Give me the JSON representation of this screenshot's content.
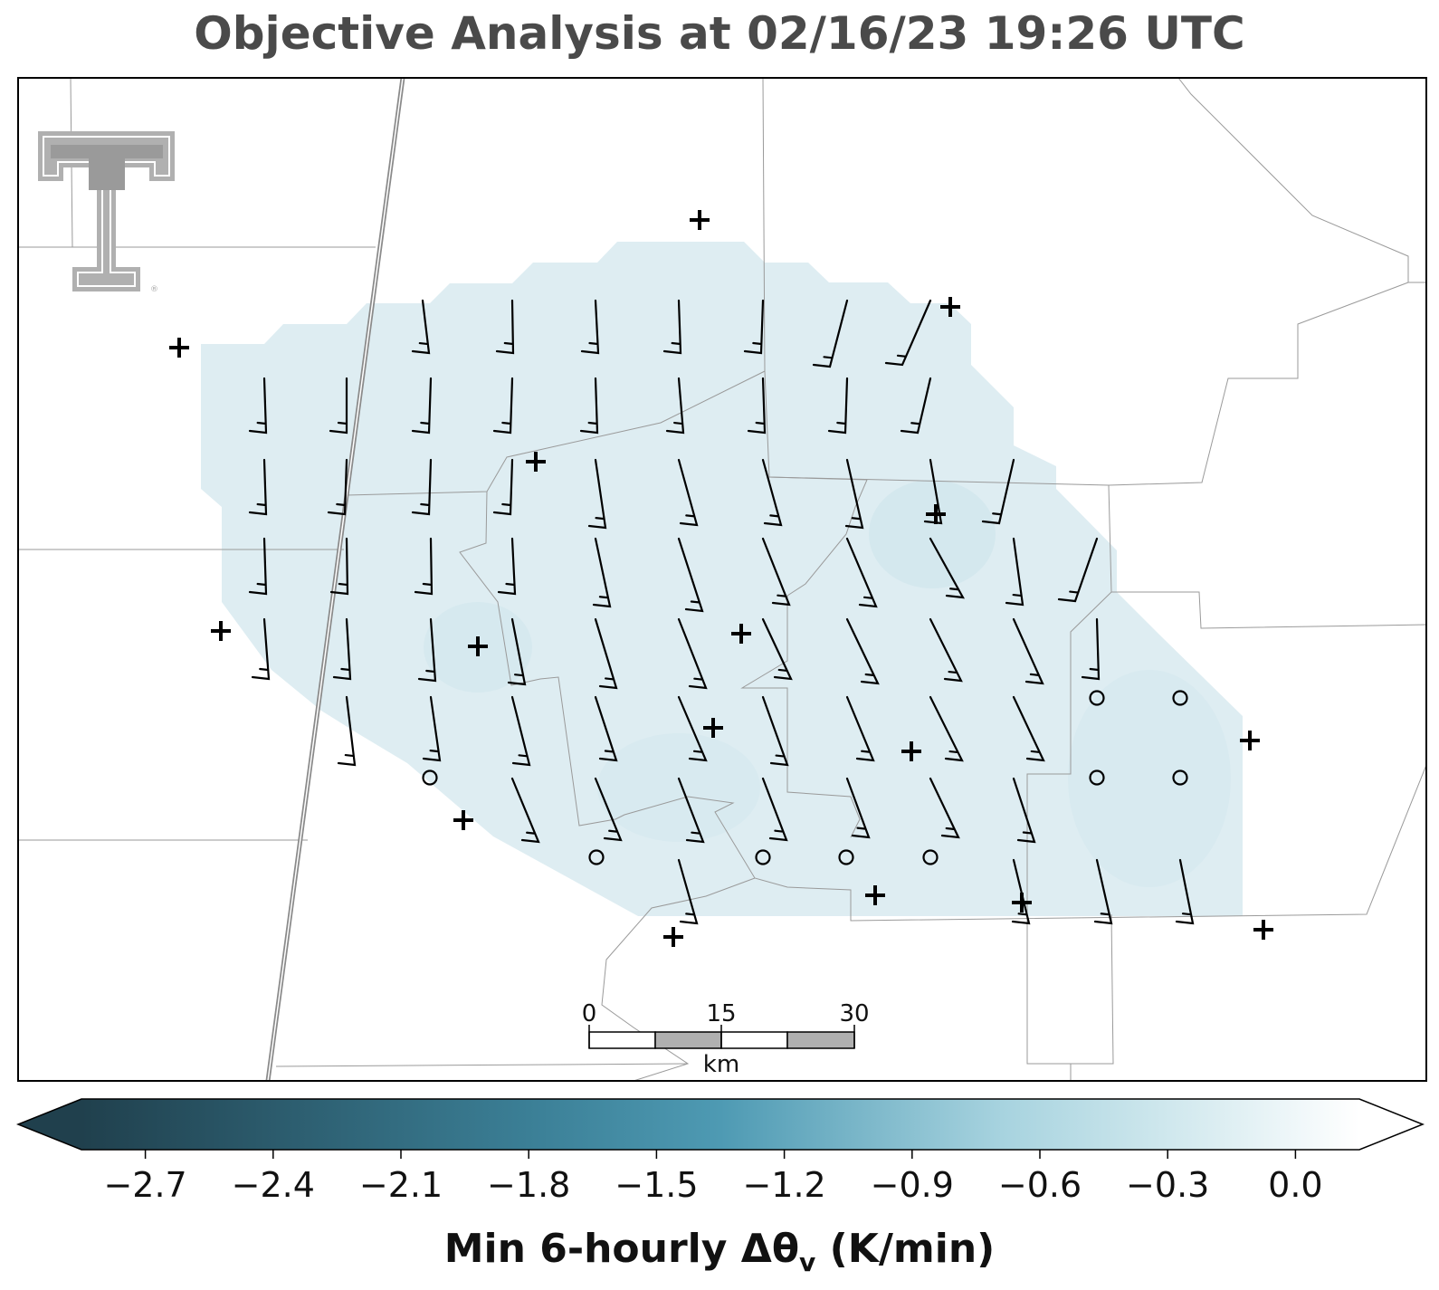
{
  "title": "Objective Analysis at 02/16/23 19:26 UTC",
  "colorbar": {
    "label_main": "Min 6-hourly Δθ",
    "label_sub": "v",
    "label_unit": " (K/min)",
    "ticks": [
      "−2.7",
      "−2.4",
      "−2.1",
      "−1.8",
      "−1.5",
      "−1.2",
      "−0.9",
      "−0.6",
      "−0.3",
      "0.0"
    ],
    "tick_values": [
      -2.7,
      -2.4,
      -2.1,
      -1.8,
      -1.5,
      -1.2,
      -0.9,
      -0.6,
      -0.3,
      0.0
    ],
    "range": [
      -2.85,
      0.15
    ],
    "extend": "both",
    "colors": {
      "min": "#20404d",
      "mid": "#4a97b0",
      "light": "#bfe0e8",
      "max": "#ffffff"
    }
  },
  "scale_bar": {
    "labels": [
      "0",
      "15",
      "30"
    ],
    "unit": "km"
  },
  "logo": {
    "name": "Texas Tech Double T",
    "text": "®"
  },
  "analysis_field": {
    "value": -0.4,
    "color": "#dcecf1"
  },
  "station_markers": {
    "plus_count": 17,
    "circle_count": 9
  }
}
